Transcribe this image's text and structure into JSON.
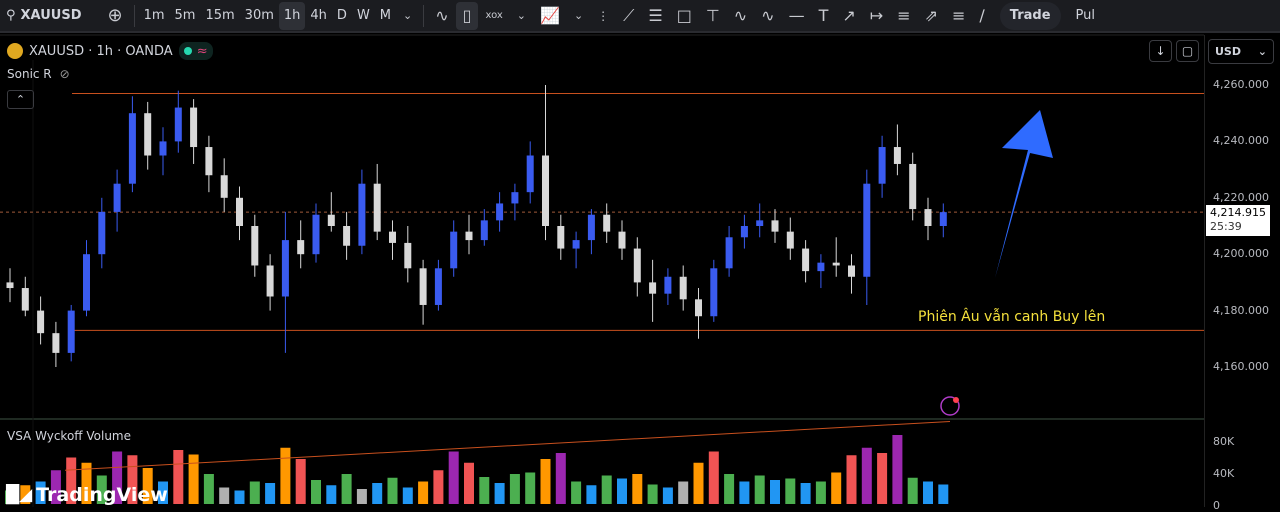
{
  "toolbar": {
    "symbol": "XAUUSD",
    "timeframes": [
      "1m",
      "5m",
      "15m",
      "30m",
      "1h",
      "4h",
      "D",
      "W",
      "M"
    ],
    "active_timeframe": "1h",
    "trade_label": "Trade",
    "publish_label": "Pul"
  },
  "legend": {
    "title": "XAUUSD · 1h · OANDA",
    "indicator1": "Sonic R",
    "indicator2": "VSA Wyckoff Volume"
  },
  "currency": "USD",
  "price_axis": [
    "4,260.000",
    "4,240.000",
    "4,220.000",
    "4,200.000",
    "4,180.000",
    "4,160.000"
  ],
  "volume_axis": [
    "80K",
    "40K",
    "0"
  ],
  "current_price": "4,214.915",
  "countdown": "25:39",
  "annotation": "Phiên Âu vẫn canh Buy lên",
  "brand": "TradingView",
  "colors": {
    "up": "#3a5bf0",
    "down": "#d8d8d8",
    "level": "#c8501e",
    "arrow": "#2f6bff",
    "note": "#f5e13c"
  },
  "chart_data": {
    "type": "candlestick",
    "symbol": "XAUUSD",
    "interval": "1h",
    "exchange": "OANDA",
    "ylim": [
      4150,
      4265
    ],
    "levels": [
      4257,
      4173
    ],
    "ohlc": [
      [
        4190,
        4195,
        4183,
        4188
      ],
      [
        4188,
        4192,
        4178,
        4180
      ],
      [
        4180,
        4185,
        4168,
        4172
      ],
      [
        4172,
        4176,
        4160,
        4165
      ],
      [
        4165,
        4182,
        4162,
        4180
      ],
      [
        4180,
        4205,
        4178,
        4200
      ],
      [
        4200,
        4220,
        4195,
        4215
      ],
      [
        4215,
        4230,
        4208,
        4225
      ],
      [
        4225,
        4256,
        4222,
        4250
      ],
      [
        4250,
        4254,
        4230,
        4235
      ],
      [
        4235,
        4245,
        4228,
        4240
      ],
      [
        4240,
        4258,
        4236,
        4252
      ],
      [
        4252,
        4255,
        4232,
        4238
      ],
      [
        4238,
        4242,
        4222,
        4228
      ],
      [
        4228,
        4234,
        4215,
        4220
      ],
      [
        4220,
        4224,
        4205,
        4210
      ],
      [
        4210,
        4214,
        4192,
        4196
      ],
      [
        4196,
        4200,
        4180,
        4185
      ],
      [
        4185,
        4215,
        4165,
        4205
      ],
      [
        4205,
        4212,
        4195,
        4200
      ],
      [
        4200,
        4218,
        4197,
        4214
      ],
      [
        4214,
        4222,
        4208,
        4210
      ],
      [
        4210,
        4215,
        4198,
        4203
      ],
      [
        4203,
        4230,
        4200,
        4225
      ],
      [
        4225,
        4232,
        4205,
        4208
      ],
      [
        4208,
        4212,
        4198,
        4204
      ],
      [
        4204,
        4210,
        4190,
        4195
      ],
      [
        4195,
        4198,
        4175,
        4182
      ],
      [
        4182,
        4198,
        4180,
        4195
      ],
      [
        4195,
        4212,
        4192,
        4208
      ],
      [
        4208,
        4214,
        4200,
        4205
      ],
      [
        4205,
        4216,
        4203,
        4212
      ],
      [
        4212,
        4222,
        4208,
        4218
      ],
      [
        4218,
        4225,
        4212,
        4222
      ],
      [
        4222,
        4240,
        4218,
        4235
      ],
      [
        4235,
        4260,
        4205,
        4210
      ],
      [
        4210,
        4214,
        4198,
        4202
      ],
      [
        4202,
        4208,
        4195,
        4205
      ],
      [
        4205,
        4216,
        4200,
        4214
      ],
      [
        4214,
        4218,
        4204,
        4208
      ],
      [
        4208,
        4212,
        4198,
        4202
      ],
      [
        4202,
        4206,
        4185,
        4190
      ],
      [
        4190,
        4198,
        4176,
        4186
      ],
      [
        4186,
        4195,
        4182,
        4192
      ],
      [
        4192,
        4196,
        4180,
        4184
      ],
      [
        4184,
        4188,
        4170,
        4178
      ],
      [
        4178,
        4198,
        4176,
        4195
      ],
      [
        4195,
        4210,
        4192,
        4206
      ],
      [
        4206,
        4214,
        4202,
        4210
      ],
      [
        4210,
        4218,
        4206,
        4212
      ],
      [
        4212,
        4216,
        4204,
        4208
      ],
      [
        4208,
        4213,
        4198,
        4202
      ],
      [
        4202,
        4205,
        4190,
        4194
      ],
      [
        4194,
        4200,
        4188,
        4197
      ],
      [
        4197,
        4206,
        4192,
        4196
      ],
      [
        4196,
        4200,
        4186,
        4192
      ],
      [
        4192,
        4230,
        4182,
        4225
      ],
      [
        4225,
        4242,
        4220,
        4238
      ],
      [
        4238,
        4246,
        4228,
        4232
      ],
      [
        4232,
        4236,
        4212,
        4216
      ],
      [
        4216,
        4220,
        4205,
        4210
      ],
      [
        4210,
        4218,
        4206,
        4214.915
      ]
    ],
    "volume_k": [
      18,
      25,
      30,
      45,
      62,
      55,
      38,
      70,
      65,
      48,
      30,
      72,
      66,
      40,
      22,
      18,
      30,
      28,
      75,
      60,
      32,
      25,
      40,
      20,
      28,
      35,
      22,
      30,
      45,
      70,
      55,
      36,
      28,
      40,
      42,
      60,
      68,
      30,
      25,
      38,
      34,
      40,
      26,
      22,
      30,
      55,
      70,
      40,
      30,
      38,
      32,
      34,
      28,
      30,
      42,
      65,
      75,
      68,
      92,
      35,
      30,
      26
    ],
    "volume_colors": [
      "g",
      "o",
      "b",
      "p",
      "r",
      "o",
      "g",
      "p",
      "r",
      "o",
      "b",
      "r",
      "o",
      "g",
      "w",
      "b",
      "g",
      "b",
      "o",
      "r",
      "g",
      "b",
      "g",
      "w",
      "b",
      "g",
      "b",
      "o",
      "r",
      "p",
      "r",
      "g",
      "b",
      "g",
      "g",
      "o",
      "p",
      "g",
      "b",
      "g",
      "b",
      "o",
      "g",
      "b",
      "w",
      "o",
      "r",
      "g",
      "b",
      "g",
      "b",
      "g",
      "b",
      "g",
      "o",
      "r",
      "p",
      "r",
      "p",
      "g",
      "b",
      "b"
    ],
    "volume_colors_map": {
      "g": "#4caf50",
      "o": "#ff9800",
      "r": "#f05454",
      "p": "#9c27b0",
      "b": "#2196f3",
      "w": "#b0b0b0"
    },
    "volume_trend_k": [
      45,
      110
    ]
  }
}
